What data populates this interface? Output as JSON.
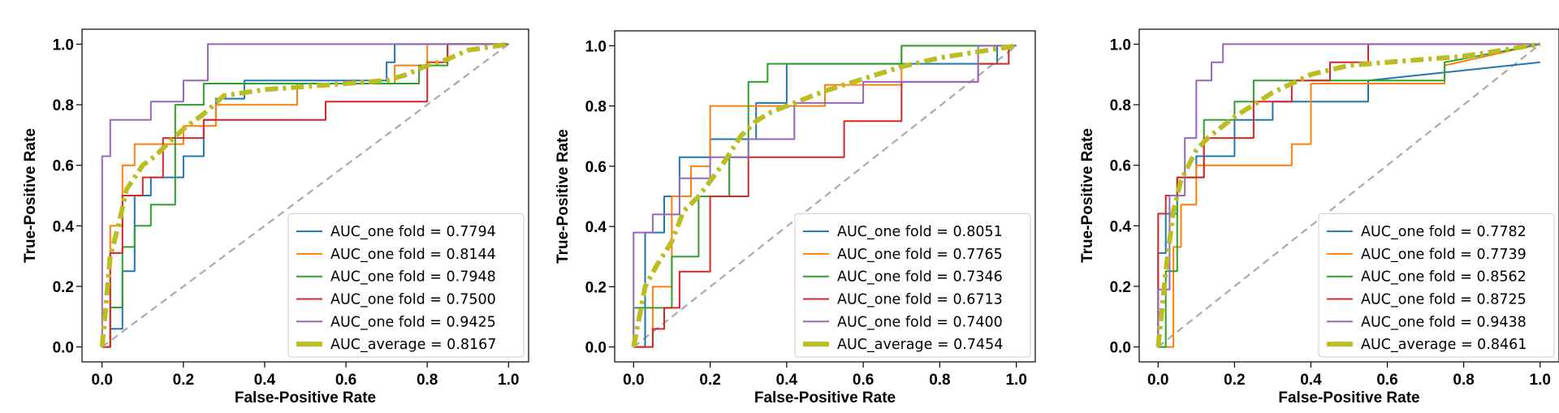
{
  "chart_data": [
    {
      "type": "line",
      "xlabel": "False-Positive Rate",
      "ylabel": "True-Positive Rate",
      "xlim": [
        0,
        1
      ],
      "ylim": [
        0,
        1
      ],
      "xticks": [
        "0.0",
        "0.2",
        "0.4",
        "0.6",
        "0.8",
        "1.0"
      ],
      "yticks": [
        "0.0",
        "0.2",
        "0.4",
        "0.6",
        "0.8",
        "1.0"
      ],
      "grid": false,
      "legend_position": "lower-right",
      "diagonal": {
        "x": [
          0,
          1
        ],
        "y": [
          0,
          1
        ],
        "color": "#aaaaaa",
        "style": "dashed"
      },
      "series": [
        {
          "name": "AUC_one fold = 0.7794",
          "color": "#1f77b4",
          "x": [
            0,
            0.02,
            0.02,
            0.05,
            0.05,
            0.08,
            0.08,
            0.12,
            0.12,
            0.2,
            0.2,
            0.25,
            0.25,
            0.28,
            0.28,
            0.35,
            0.35,
            0.7,
            0.7,
            0.72,
            0.72,
            1.0
          ],
          "y": [
            0,
            0,
            0.06,
            0.06,
            0.25,
            0.25,
            0.5,
            0.5,
            0.56,
            0.56,
            0.63,
            0.63,
            0.75,
            0.75,
            0.82,
            0.82,
            0.88,
            0.88,
            0.94,
            0.94,
            1.0,
            1.0
          ]
        },
        {
          "name": "AUC_one fold = 0.8144",
          "color": "#ff7f0e",
          "x": [
            0,
            0.02,
            0.02,
            0.05,
            0.05,
            0.08,
            0.08,
            0.2,
            0.2,
            0.28,
            0.28,
            0.48,
            0.48,
            0.72,
            0.72,
            0.8,
            0.8,
            1.0
          ],
          "y": [
            0,
            0,
            0.4,
            0.4,
            0.6,
            0.6,
            0.67,
            0.67,
            0.73,
            0.73,
            0.8,
            0.8,
            0.87,
            0.87,
            0.93,
            0.93,
            1.0,
            1.0
          ]
        },
        {
          "name": "AUC_one fold = 0.7948",
          "color": "#2ca02c",
          "x": [
            0,
            0.02,
            0.02,
            0.05,
            0.05,
            0.08,
            0.08,
            0.12,
            0.12,
            0.18,
            0.18,
            0.25,
            0.25,
            0.4,
            0.4,
            0.78,
            0.78,
            0.85,
            0.85,
            1.0
          ],
          "y": [
            0,
            0,
            0.13,
            0.13,
            0.33,
            0.33,
            0.4,
            0.4,
            0.47,
            0.47,
            0.8,
            0.8,
            0.87,
            0.87,
            0.87,
            0.87,
            0.93,
            0.93,
            1.0,
            1.0
          ]
        },
        {
          "name": "AUC_one fold = 0.7500",
          "color": "#d62728",
          "x": [
            0,
            0.02,
            0.02,
            0.05,
            0.05,
            0.1,
            0.1,
            0.15,
            0.15,
            0.25,
            0.25,
            0.55,
            0.55,
            0.8,
            0.8,
            0.85,
            0.85,
            1.0
          ],
          "y": [
            0,
            0,
            0.31,
            0.31,
            0.5,
            0.5,
            0.56,
            0.56,
            0.69,
            0.69,
            0.75,
            0.75,
            0.81,
            0.81,
            0.94,
            0.94,
            1.0,
            1.0
          ]
        },
        {
          "name": "AUC_one fold = 0.9425",
          "color": "#9467bd",
          "x": [
            0,
            0.0,
            0.02,
            0.02,
            0.05,
            0.05,
            0.12,
            0.12,
            0.2,
            0.2,
            0.26,
            0.26,
            1.0
          ],
          "y": [
            0,
            0.63,
            0.63,
            0.75,
            0.75,
            0.75,
            0.75,
            0.81,
            0.81,
            0.88,
            0.88,
            1.0,
            1.0
          ]
        },
        {
          "name": "AUC_average = 0.8167",
          "color": "#bcbd22",
          "thick": true,
          "x": [
            0,
            0.02,
            0.04,
            0.06,
            0.08,
            0.1,
            0.13,
            0.16,
            0.2,
            0.25,
            0.3,
            0.35,
            0.4,
            0.5,
            0.6,
            0.7,
            0.75,
            0.8,
            0.85,
            0.9,
            0.95,
            1.0
          ],
          "y": [
            0,
            0.3,
            0.4,
            0.52,
            0.56,
            0.6,
            0.63,
            0.67,
            0.72,
            0.77,
            0.83,
            0.84,
            0.85,
            0.86,
            0.87,
            0.88,
            0.9,
            0.93,
            0.95,
            0.98,
            0.99,
            1.0
          ]
        }
      ]
    },
    {
      "type": "line",
      "xlabel": "False-Positive Rate",
      "ylabel": "True-Positive Rate",
      "xlim": [
        0,
        1
      ],
      "ylim": [
        0,
        1
      ],
      "xticks": [
        "0.0",
        "0.2",
        "0.4",
        "0.6",
        "0.8",
        "1.0"
      ],
      "yticks": [
        "0.0",
        "0.2",
        "0.4",
        "0.6",
        "0.8",
        "1.0"
      ],
      "grid": false,
      "legend_position": "lower-right",
      "diagonal": {
        "x": [
          0,
          1
        ],
        "y": [
          0,
          1
        ],
        "color": "#aaaaaa",
        "style": "dashed"
      },
      "series": [
        {
          "name": "AUC_one fold = 0.8051",
          "color": "#1f77b4",
          "x": [
            0,
            0.03,
            0.03,
            0.08,
            0.08,
            0.12,
            0.12,
            0.2,
            0.2,
            0.32,
            0.32,
            0.4,
            0.4,
            0.95,
            0.95,
            1.0
          ],
          "y": [
            0,
            0,
            0.38,
            0.38,
            0.5,
            0.5,
            0.63,
            0.63,
            0.69,
            0.69,
            0.81,
            0.81,
            0.94,
            0.94,
            1.0,
            1.0
          ]
        },
        {
          "name": "AUC_one fold = 0.7765",
          "color": "#ff7f0e",
          "x": [
            0,
            0.05,
            0.05,
            0.1,
            0.1,
            0.15,
            0.15,
            0.2,
            0.2,
            0.25,
            0.25,
            0.5,
            0.5,
            0.7,
            0.7,
            1.0
          ],
          "y": [
            0,
            0,
            0.2,
            0.2,
            0.5,
            0.5,
            0.6,
            0.6,
            0.8,
            0.8,
            0.8,
            0.8,
            0.87,
            0.87,
            1.0,
            1.0
          ]
        },
        {
          "name": "AUC_one fold = 0.7346",
          "color": "#2ca02c",
          "x": [
            0,
            0.0,
            0.1,
            0.1,
            0.17,
            0.17,
            0.25,
            0.25,
            0.3,
            0.3,
            0.35,
            0.35,
            0.7,
            0.7,
            1.0
          ],
          "y": [
            0,
            0.13,
            0.13,
            0.3,
            0.3,
            0.5,
            0.5,
            0.63,
            0.63,
            0.88,
            0.88,
            0.94,
            0.94,
            1.0,
            1.0
          ]
        },
        {
          "name": "AUC_one fold = 0.6713",
          "color": "#d62728",
          "x": [
            0,
            0.05,
            0.05,
            0.08,
            0.08,
            0.12,
            0.12,
            0.2,
            0.2,
            0.3,
            0.3,
            0.55,
            0.55,
            0.7,
            0.7,
            0.9,
            0.9,
            0.98,
            0.98,
            1.0
          ],
          "y": [
            0,
            0,
            0.06,
            0.06,
            0.13,
            0.13,
            0.25,
            0.25,
            0.5,
            0.5,
            0.63,
            0.63,
            0.75,
            0.75,
            0.88,
            0.88,
            0.94,
            0.94,
            1.0,
            1.0
          ]
        },
        {
          "name": "AUC_one fold = 0.7400",
          "color": "#9467bd",
          "x": [
            0,
            0.0,
            0.05,
            0.05,
            0.12,
            0.12,
            0.2,
            0.2,
            0.3,
            0.3,
            0.42,
            0.42,
            0.6,
            0.6,
            0.9,
            0.9,
            1.0
          ],
          "y": [
            0,
            0.38,
            0.38,
            0.44,
            0.44,
            0.56,
            0.56,
            0.63,
            0.63,
            0.69,
            0.69,
            0.81,
            0.81,
            0.88,
            0.88,
            1.0,
            1.0
          ]
        },
        {
          "name": "AUC_average = 0.7454",
          "color": "#bcbd22",
          "thick": true,
          "x": [
            0,
            0.03,
            0.06,
            0.1,
            0.13,
            0.17,
            0.2,
            0.24,
            0.28,
            0.32,
            0.36,
            0.4,
            0.5,
            0.6,
            0.7,
            0.8,
            0.9,
            1.0
          ],
          "y": [
            0,
            0.2,
            0.27,
            0.35,
            0.45,
            0.5,
            0.55,
            0.62,
            0.7,
            0.75,
            0.78,
            0.8,
            0.85,
            0.89,
            0.93,
            0.96,
            0.98,
            1.0
          ]
        }
      ]
    },
    {
      "type": "line",
      "xlabel": "False-Positive Rate",
      "ylabel": "True-Positive Rate",
      "xlim": [
        0,
        1
      ],
      "ylim": [
        0,
        1
      ],
      "xticks": [
        "0.0",
        "0.2",
        "0.4",
        "0.6",
        "0.8",
        "1.0"
      ],
      "yticks": [
        "0.0",
        "0.2",
        "0.4",
        "0.6",
        "0.8",
        "1.0"
      ],
      "grid": false,
      "legend_position": "lower-right",
      "diagonal": {
        "x": [
          0,
          1
        ],
        "y": [
          0,
          1
        ],
        "color": "#aaaaaa",
        "style": "dashed"
      },
      "series": [
        {
          "name": "AUC_one fold = 0.7782",
          "color": "#1f77b4",
          "x": [
            0,
            0.0,
            0.02,
            0.02,
            0.05,
            0.05,
            0.1,
            0.1,
            0.2,
            0.2,
            0.3,
            0.3,
            0.55,
            0.55,
            1.0
          ],
          "y": [
            0,
            0.31,
            0.31,
            0.44,
            0.44,
            0.56,
            0.56,
            0.63,
            0.63,
            0.75,
            0.75,
            0.81,
            0.81,
            0.88,
            0.94
          ]
        },
        {
          "name": "AUC_one fold = 0.7739",
          "color": "#ff7f0e",
          "x": [
            0,
            0.04,
            0.04,
            0.06,
            0.06,
            0.1,
            0.1,
            0.35,
            0.35,
            0.4,
            0.4,
            0.75,
            0.75,
            1.0
          ],
          "y": [
            0,
            0,
            0.33,
            0.33,
            0.47,
            0.47,
            0.6,
            0.6,
            0.67,
            0.67,
            0.87,
            0.87,
            0.93,
            1.0
          ]
        },
        {
          "name": "AUC_one fold = 0.8562",
          "color": "#2ca02c",
          "x": [
            0,
            0.02,
            0.02,
            0.05,
            0.05,
            0.12,
            0.12,
            0.2,
            0.2,
            0.25,
            0.25,
            0.75,
            0.75,
            1.0
          ],
          "y": [
            0,
            0,
            0.25,
            0.25,
            0.56,
            0.56,
            0.75,
            0.75,
            0.81,
            0.81,
            0.88,
            0.88,
            0.94,
            1.0
          ]
        },
        {
          "name": "AUC_one fold = 0.8725",
          "color": "#d62728",
          "x": [
            0,
            0.0,
            0.02,
            0.02,
            0.05,
            0.05,
            0.12,
            0.12,
            0.25,
            0.25,
            0.35,
            0.35,
            0.45,
            0.45,
            0.55,
            0.55,
            1.0
          ],
          "y": [
            0,
            0.44,
            0.44,
            0.5,
            0.5,
            0.56,
            0.56,
            0.69,
            0.69,
            0.81,
            0.81,
            0.88,
            0.88,
            0.94,
            0.94,
            1.0,
            1.0
          ]
        },
        {
          "name": "AUC_one fold = 0.9438",
          "color": "#9467bd",
          "x": [
            0,
            0.0,
            0.03,
            0.03,
            0.07,
            0.07,
            0.1,
            0.1,
            0.14,
            0.14,
            0.17,
            0.17,
            1.0
          ],
          "y": [
            0,
            0.19,
            0.19,
            0.5,
            0.5,
            0.69,
            0.69,
            0.88,
            0.88,
            0.94,
            0.94,
            1.0,
            1.0
          ]
        },
        {
          "name": "AUC_average = 0.8461",
          "color": "#bcbd22",
          "thick": true,
          "x": [
            0,
            0.02,
            0.04,
            0.06,
            0.08,
            0.1,
            0.13,
            0.16,
            0.2,
            0.25,
            0.3,
            0.35,
            0.4,
            0.5,
            0.6,
            0.7,
            0.8,
            0.9,
            1.0
          ],
          "y": [
            0,
            0.25,
            0.45,
            0.55,
            0.6,
            0.65,
            0.69,
            0.72,
            0.76,
            0.8,
            0.84,
            0.87,
            0.9,
            0.93,
            0.94,
            0.95,
            0.96,
            0.98,
            1.0
          ]
        }
      ]
    }
  ]
}
